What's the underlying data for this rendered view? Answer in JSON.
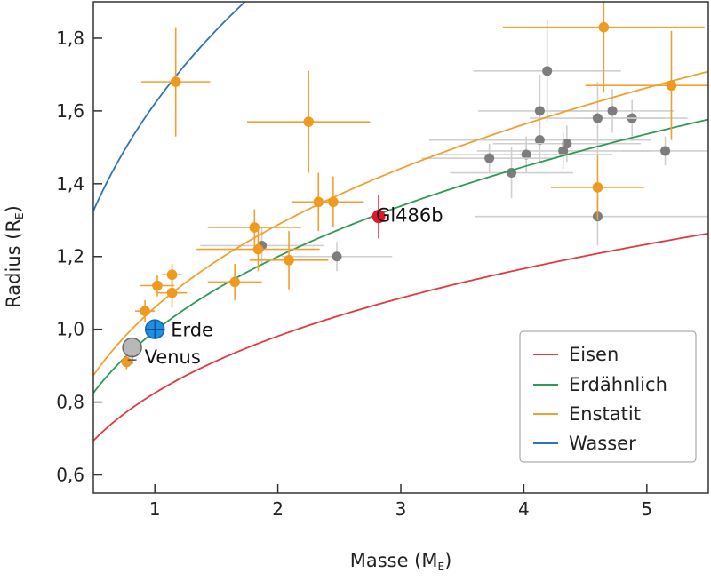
{
  "chart_data": {
    "type": "scatter",
    "xlabel": "Masse (M",
    "xlabel_sub": "E",
    "xlabel_close": ")",
    "ylabel": "Radius (R",
    "ylabel_sub": "E",
    "ylabel_close": ")",
    "xlim": [
      0.5,
      5.5
    ],
    "ylim": [
      0.55,
      1.9
    ],
    "x_ticks": [
      1,
      2,
      3,
      4,
      5
    ],
    "x_tick_labels": [
      "1",
      "2",
      "3",
      "4",
      "5"
    ],
    "y_ticks": [
      0.6,
      0.8,
      1.0,
      1.2,
      1.4,
      1.6,
      1.8
    ],
    "y_tick_labels": [
      "0,6",
      "0,8",
      "1,0",
      "1,2",
      "1,4",
      "1,6",
      "1,8"
    ],
    "grid": false,
    "legend_position": "bottom-right",
    "curves": [
      {
        "name": "Eisen",
        "color": "#e03a3e",
        "c": 0.825,
        "e": 0.25
      },
      {
        "name": "Erdähnlich",
        "color": "#2e9a58",
        "c": 0.995,
        "e": 0.27
      },
      {
        "name": "Enstatit",
        "color": "#f0a030",
        "c": 1.06,
        "e": 0.28
      },
      {
        "name": "Wasser",
        "color": "#2f74b8",
        "c": 1.62,
        "e": 0.29
      }
    ],
    "gray_points": [
      {
        "x": 4.19,
        "y": 1.71,
        "xerr": 0.6,
        "yerr": 0.14
      },
      {
        "x": 4.13,
        "y": 1.6,
        "xerr": 0.5,
        "yerr": 0.1
      },
      {
        "x": 4.72,
        "y": 1.6,
        "xerr": 0.5,
        "yerr": 0.06
      },
      {
        "x": 4.88,
        "y": 1.58,
        "xerr": 0.45,
        "yerr": 0.05
      },
      {
        "x": 4.6,
        "y": 1.58,
        "xerr": 0.55,
        "yerr": 0.1
      },
      {
        "x": 4.13,
        "y": 1.52,
        "xerr": 0.9,
        "yerr": 0.06
      },
      {
        "x": 4.35,
        "y": 1.51,
        "xerr": 0.6,
        "yerr": 0.05
      },
      {
        "x": 4.32,
        "y": 1.49,
        "xerr": 0.7,
        "yerr": 0.05
      },
      {
        "x": 4.02,
        "y": 1.48,
        "xerr": 0.7,
        "yerr": 0.05
      },
      {
        "x": 3.72,
        "y": 1.47,
        "xerr": 0.55,
        "yerr": 0.04
      },
      {
        "x": 3.9,
        "y": 1.43,
        "xerr": 0.5,
        "yerr": 0.07
      },
      {
        "x": 5.15,
        "y": 1.49,
        "xerr": 0.35,
        "yerr": 0.04
      },
      {
        "x": 4.6,
        "y": 1.31,
        "xerr": 1.0,
        "yerr": 0.08
      },
      {
        "x": 1.87,
        "y": 1.23,
        "xerr": 0.5,
        "yerr": 0.05
      },
      {
        "x": 2.48,
        "y": 1.2,
        "xerr": 0.45,
        "yerr": 0.04
      }
    ],
    "orange_points": [
      {
        "x": 1.17,
        "y": 1.68,
        "xerr": 0.28,
        "yerr": 0.15
      },
      {
        "x": 2.25,
        "y": 1.57,
        "xerr": 0.5,
        "yerr": 0.14
      },
      {
        "x": 4.65,
        "y": 1.83,
        "xerr": 0.82,
        "yerr": 0.18
      },
      {
        "x": 5.2,
        "y": 1.67,
        "xerr": 0.7,
        "yerr": 0.15
      },
      {
        "x": 4.6,
        "y": 1.39,
        "xerr": 0.38,
        "yerr": 0.09
      },
      {
        "x": 2.33,
        "y": 1.35,
        "xerr": 0.22,
        "yerr": 0.08
      },
      {
        "x": 2.45,
        "y": 1.35,
        "xerr": 0.25,
        "yerr": 0.07
      },
      {
        "x": 1.81,
        "y": 1.28,
        "xerr": 0.38,
        "yerr": 0.05
      },
      {
        "x": 1.84,
        "y": 1.22,
        "xerr": 0.5,
        "yerr": 0.06
      },
      {
        "x": 2.09,
        "y": 1.19,
        "xerr": 0.32,
        "yerr": 0.08
      },
      {
        "x": 1.65,
        "y": 1.13,
        "xerr": 0.22,
        "yerr": 0.05
      },
      {
        "x": 1.02,
        "y": 1.12,
        "xerr": 0.14,
        "yerr": 0.03
      },
      {
        "x": 1.14,
        "y": 1.15,
        "xerr": 0.08,
        "yerr": 0.03
      },
      {
        "x": 1.14,
        "y": 1.1,
        "xerr": 0.12,
        "yerr": 0.04
      },
      {
        "x": 0.92,
        "y": 1.05,
        "xerr": 0.08,
        "yerr": 0.03
      },
      {
        "x": 0.77,
        "y": 0.91,
        "xerr": 0.05,
        "yerr": 0.02
      }
    ],
    "highlights": [
      {
        "label": "Gl486b",
        "x": 2.82,
        "y": 1.31,
        "xerr": 0.05,
        "yerr": 0.06,
        "color": "#e0162c"
      },
      {
        "label": "Erde",
        "x": 1.0,
        "y": 1.0,
        "color": "#1f8fe0"
      },
      {
        "label": "Venus",
        "x": 0.815,
        "y": 0.95,
        "color": "#b8b8b8"
      }
    ]
  }
}
